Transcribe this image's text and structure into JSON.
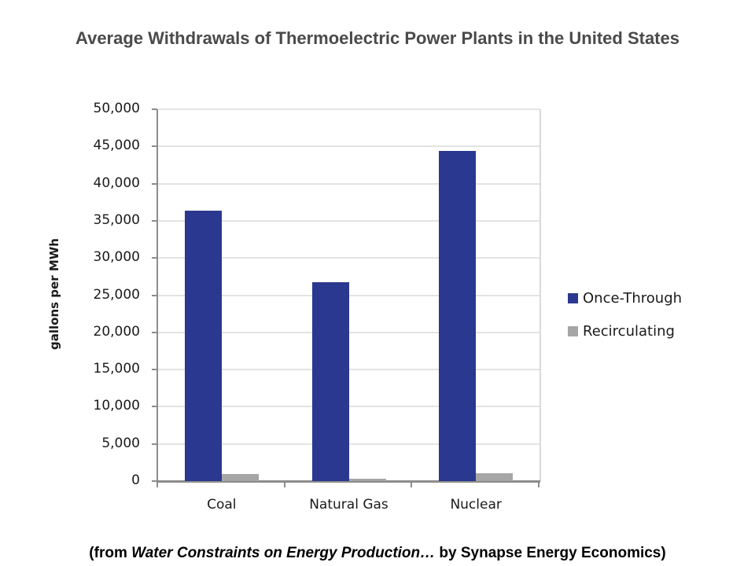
{
  "title": "Average Withdrawals of Thermoelectric Power Plants in the United States",
  "caption": {
    "prefix": "(from ",
    "italic": "Water Constraints on Energy Production…",
    "suffix": " by Synapse Energy Economics)"
  },
  "colors": {
    "once_through": "#2b388f",
    "recirculating": "#a6a6a6",
    "gridline": "#e3e3e3",
    "axis": "#8c8c8c"
  },
  "chart_data": {
    "type": "bar",
    "title": "Average Withdrawals of Thermoelectric Power Plants in the United States",
    "xlabel": "",
    "ylabel": "gallons per MWh",
    "categories": [
      "Coal",
      "Natural Gas",
      "Nuclear"
    ],
    "series": [
      {
        "name": "Once-Through",
        "values": [
          36400,
          26700,
          44400
        ]
      },
      {
        "name": "Recirculating",
        "values": [
          1000,
          300,
          1100
        ]
      }
    ],
    "ylim": [
      0,
      50000
    ],
    "yticks": [
      "0",
      "5,000",
      "10,000",
      "15,000",
      "20,000",
      "25,000",
      "30,000",
      "35,000",
      "40,000",
      "45,000",
      "50,000"
    ],
    "grid": true,
    "legend_position": "right"
  }
}
